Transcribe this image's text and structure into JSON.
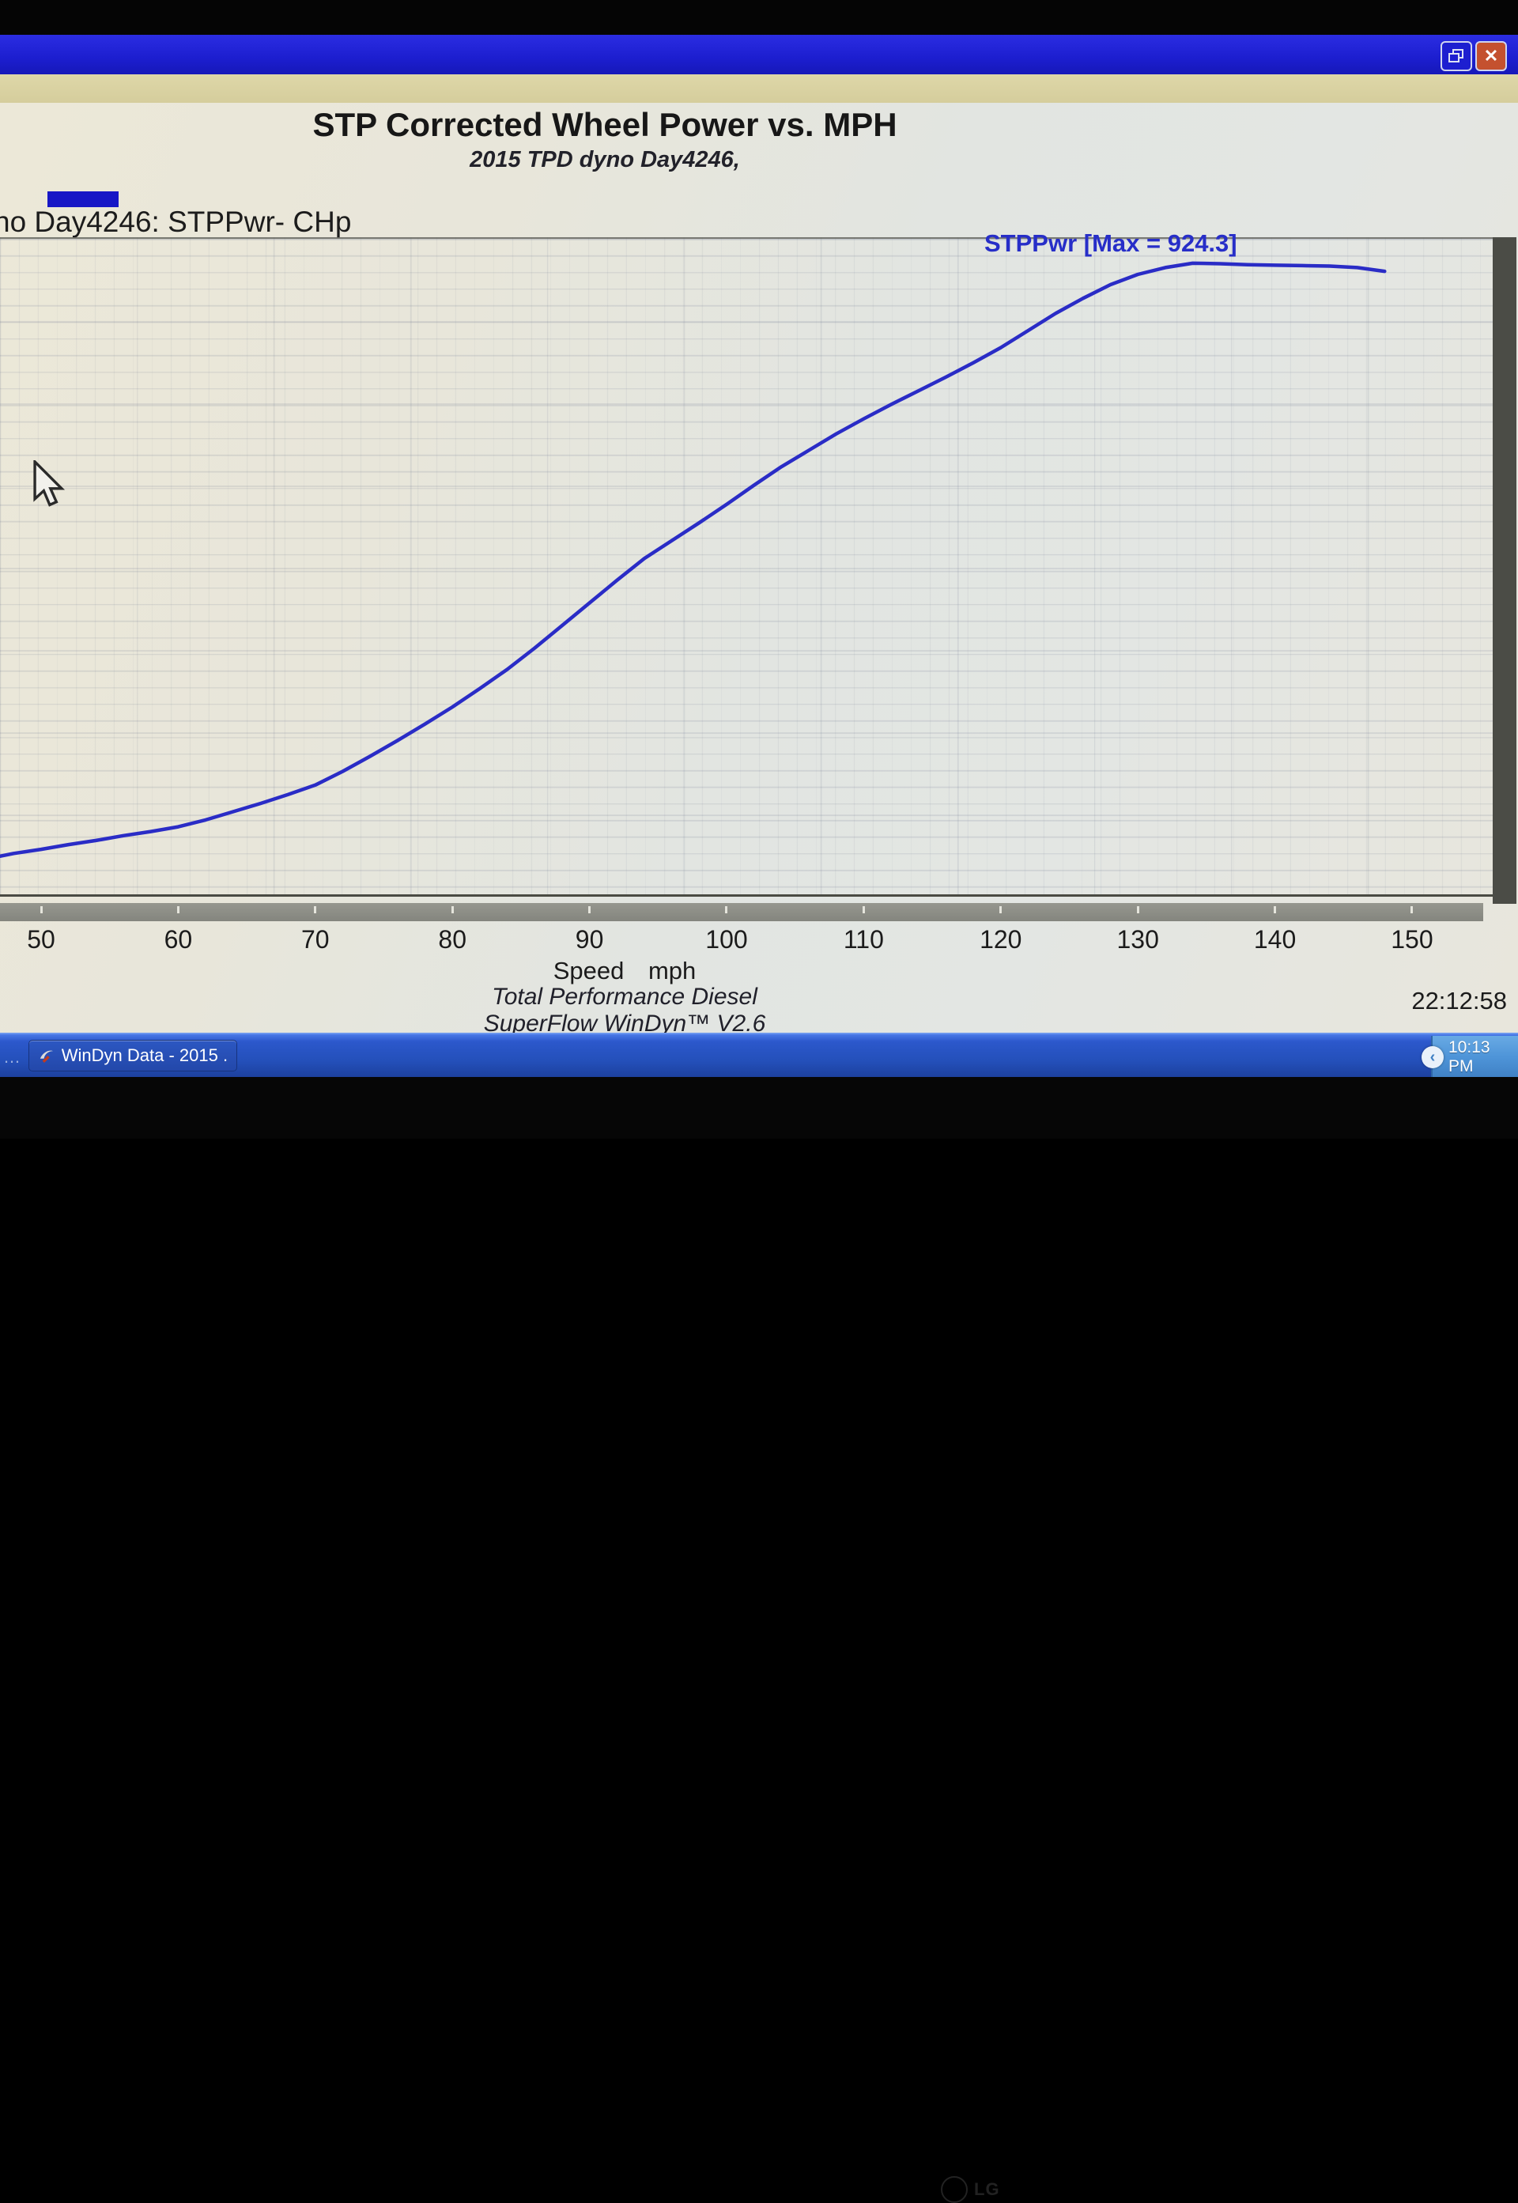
{
  "titlebar": {
    "close_glyph": "✕"
  },
  "chart_data": {
    "type": "line",
    "title": "STP Corrected Wheel Power vs. MPH",
    "subtitle": "2015 TPD dyno Day4246,",
    "xlabel": "Speed mph",
    "x_ticks": [
      50,
      60,
      70,
      80,
      90,
      100,
      110,
      120,
      130,
      140,
      150
    ],
    "xlim": [
      47,
      156
    ],
    "ylim": [
      0,
      960
    ],
    "grid": true,
    "legend": {
      "label": "no Day4246: STPPwr- CHp",
      "position": "top-left",
      "swatch_color": "#1717c6"
    },
    "annotation": "STPPwr [Max = 924.3]",
    "line_color": "#2a2cc6",
    "series": [
      {
        "name": "STPPwr",
        "unit": "CHp",
        "max": 924.3,
        "points": [
          [
            47,
            58
          ],
          [
            48,
            62
          ],
          [
            50,
            68
          ],
          [
            52,
            75
          ],
          [
            54,
            81
          ],
          [
            56,
            88
          ],
          [
            58,
            94
          ],
          [
            60,
            101
          ],
          [
            62,
            111
          ],
          [
            64,
            123
          ],
          [
            66,
            135
          ],
          [
            68,
            148
          ],
          [
            70,
            162
          ],
          [
            72,
            182
          ],
          [
            74,
            204
          ],
          [
            76,
            227
          ],
          [
            78,
            251
          ],
          [
            80,
            276
          ],
          [
            82,
            303
          ],
          [
            84,
            331
          ],
          [
            86,
            362
          ],
          [
            88,
            395
          ],
          [
            90,
            428
          ],
          [
            92,
            461
          ],
          [
            94,
            493
          ],
          [
            96,
            519
          ],
          [
            98,
            545
          ],
          [
            100,
            572
          ],
          [
            102,
            600
          ],
          [
            104,
            627
          ],
          [
            106,
            651
          ],
          [
            108,
            675
          ],
          [
            110,
            697
          ],
          [
            112,
            718
          ],
          [
            114,
            738
          ],
          [
            116,
            758
          ],
          [
            118,
            779
          ],
          [
            120,
            801
          ],
          [
            122,
            826
          ],
          [
            124,
            851
          ],
          [
            126,
            873
          ],
          [
            128,
            893
          ],
          [
            130,
            908
          ],
          [
            132,
            918
          ],
          [
            134,
            924.3
          ],
          [
            136,
            923.6
          ],
          [
            138,
            922.2
          ],
          [
            140,
            921.4
          ],
          [
            142,
            920.8
          ],
          [
            144,
            920.2
          ],
          [
            146,
            918.0
          ],
          [
            148,
            912.5
          ]
        ]
      }
    ]
  },
  "chart_text": {
    "footer_line1": "Total Performance Diesel",
    "footer_line2": "SuperFlow WinDyn™ V2.6",
    "timestamp": "22:12:58"
  },
  "taskbar": {
    "overflow": "…",
    "window_button_label": "WinDyn Data - 2015 ...",
    "tray_chevron": "‹",
    "tray_time": "10:13 PM"
  },
  "monitor": {
    "brand": "LG"
  }
}
